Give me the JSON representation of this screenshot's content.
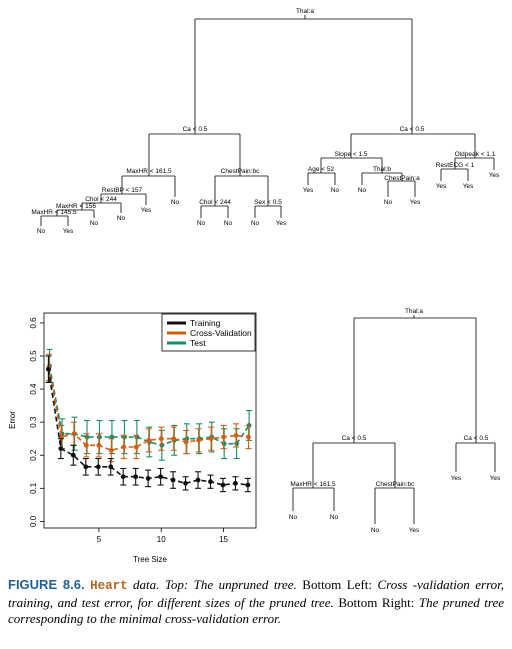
{
  "colors": {
    "training": "#111111",
    "cross_validation": "#d35f0e",
    "test": "#178a6a"
  },
  "top_tree": {
    "root": "Thal:a",
    "split_left": "Ca < 0.5",
    "split_right": "Ca < 0.5",
    "maxhr_161": "MaxHR < 161.5",
    "chestpain_bc": "ChestPain:bc",
    "slope": "Slope < 1.5",
    "oldpeak": "Oldpeak < 1.1",
    "restbp": "RestBP < 157",
    "chol_244_a": "Chol < 244",
    "maxhr_156": "MaxHR < 156",
    "maxhr_145": "MaxHR < 145.5",
    "chol_244_b": "Chol < 244",
    "sex": "Sex < 0.5",
    "age": "Age < 52",
    "thal_b": "Thal:b",
    "chestpain_a": "ChestPain:a",
    "restecg": "RestECG < 1",
    "leaves": {
      "l1": "No",
      "l2": "Yes",
      "l3": "No",
      "l4": "No",
      "l5": "Yes",
      "l6": "No",
      "l7": "No",
      "l8": "No",
      "l9": "No",
      "l10": "Yes",
      "l11": "Yes",
      "l12": "No",
      "l13": "No",
      "l14": "No",
      "l15": "Yes",
      "l16": "Yes",
      "l17": "Yes",
      "l18": "Yes"
    }
  },
  "pruned_tree": {
    "root": "Thal:a",
    "split_left": "Ca < 0.5",
    "split_right": "Ca < 0.5",
    "maxhr": "MaxHR < 161.5",
    "chestpain": "ChestPain:bc",
    "leaves": {
      "l1": "No",
      "l2": "No",
      "l3": "No",
      "l4": "Yes",
      "l5": "Yes",
      "l6": "Yes"
    }
  },
  "chart_data": {
    "type": "line",
    "xlabel": "Tree Size",
    "ylabel": "Error",
    "xlim": [
      0.6,
      17.6
    ],
    "ylim": [
      -0.02,
      0.63
    ],
    "x_ticks": [
      5,
      10,
      15
    ],
    "y_ticks": [
      0.0,
      0.1,
      0.2,
      0.3,
      0.4,
      0.5,
      0.6
    ],
    "x": [
      1,
      2,
      3,
      4,
      5,
      6,
      7,
      8,
      9,
      10,
      11,
      12,
      13,
      14,
      15,
      16,
      17
    ],
    "legend_position": "top-right",
    "series": [
      {
        "name": "Training",
        "values": [
          0.46,
          0.22,
          0.2,
          0.165,
          0.165,
          0.165,
          0.135,
          0.135,
          0.13,
          0.135,
          0.125,
          0.115,
          0.125,
          0.12,
          0.11,
          0.115,
          0.11
        ],
        "err": [
          0.04,
          0.03,
          0.03,
          0.025,
          0.025,
          0.025,
          0.025,
          0.025,
          0.025,
          0.025,
          0.025,
          0.02,
          0.025,
          0.02,
          0.02,
          0.02,
          0.02
        ]
      },
      {
        "name": "Cross-Validation",
        "values": [
          0.465,
          0.255,
          0.265,
          0.23,
          0.23,
          0.215,
          0.225,
          0.225,
          0.245,
          0.25,
          0.25,
          0.24,
          0.245,
          0.25,
          0.255,
          0.26,
          0.255
        ],
        "err": [
          0.04,
          0.035,
          0.035,
          0.035,
          0.035,
          0.035,
          0.035,
          0.035,
          0.035,
          0.035,
          0.035,
          0.035,
          0.035,
          0.035,
          0.035,
          0.035,
          0.035
        ]
      },
      {
        "name": "Test",
        "values": [
          0.47,
          0.265,
          0.265,
          0.255,
          0.255,
          0.255,
          0.255,
          0.255,
          0.24,
          0.23,
          0.245,
          0.25,
          0.25,
          0.255,
          0.235,
          0.235,
          0.29
        ],
        "err": [
          0.05,
          0.045,
          0.05,
          0.05,
          0.05,
          0.05,
          0.05,
          0.05,
          0.045,
          0.045,
          0.045,
          0.045,
          0.045,
          0.045,
          0.045,
          0.045,
          0.045
        ]
      }
    ]
  },
  "caption": {
    "figure_label": "FIGURE 8.6.",
    "dataset": "Heart",
    "text1": " data. Top: ",
    "italic1": "The unpruned tree.",
    "text2": " Bottom Left: ",
    "italic2": "Cross -validation error, training, and test error, for different sizes of the pruned tree.",
    "text3": " Bottom Right: ",
    "italic3": "The pruned tree corresponding to the minimal cross-validation error."
  }
}
